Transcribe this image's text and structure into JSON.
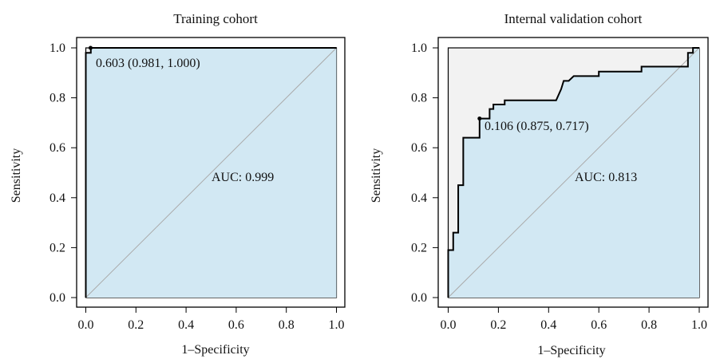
{
  "chart_data": [
    {
      "type": "line",
      "title": "Training cohort",
      "xlabel": "1–Specificity",
      "ylabel": "Sensitivity",
      "xlim": [
        0,
        1
      ],
      "ylim": [
        0,
        1
      ],
      "xticks": [
        "0.0",
        "0.2",
        "0.4",
        "0.6",
        "0.8",
        "1.0"
      ],
      "yticks": [
        "0.0",
        "0.2",
        "0.4",
        "0.6",
        "0.8",
        "1.0"
      ],
      "grid": false,
      "series": [
        {
          "points": [
            [
              0,
              0
            ],
            [
              0,
              0.98
            ],
            [
              0.02,
              0.98
            ],
            [
              0.02,
              1.0
            ],
            [
              1.0,
              1.0
            ]
          ]
        }
      ],
      "threshold_point": {
        "x": 0.019,
        "y": 1.0,
        "label": "0.603 (0.981, 1.000)"
      },
      "auc_label": "AUC: 0.999",
      "colors": {
        "fill": "#d2e8f3",
        "unfilled": "#f2f2f2",
        "curve": "#000000",
        "diagonal": "#aaaaaa"
      }
    },
    {
      "type": "line",
      "title": "Internal validation cohort",
      "xlabel": "1–Specificity",
      "ylabel": "Sensitivity",
      "xlim": [
        0,
        1
      ],
      "ylim": [
        0,
        1
      ],
      "xticks": [
        "0.0",
        "0.2",
        "0.4",
        "0.6",
        "0.8",
        "1.0"
      ],
      "yticks": [
        "0.0",
        "0.2",
        "0.4",
        "0.6",
        "0.8",
        "1.0"
      ],
      "grid": false,
      "series": [
        {
          "points": [
            [
              0,
              0
            ],
            [
              0,
              0.19
            ],
            [
              0.02,
              0.19
            ],
            [
              0.02,
              0.26
            ],
            [
              0.04,
              0.26
            ],
            [
              0.04,
              0.45
            ],
            [
              0.06,
              0.45
            ],
            [
              0.06,
              0.64
            ],
            [
              0.125,
              0.64
            ],
            [
              0.125,
              0.717
            ],
            [
              0.165,
              0.717
            ],
            [
              0.165,
              0.755
            ],
            [
              0.18,
              0.755
            ],
            [
              0.18,
              0.773
            ],
            [
              0.225,
              0.773
            ],
            [
              0.225,
              0.79
            ],
            [
              0.43,
              0.79
            ],
            [
              0.45,
              0.835
            ],
            [
              0.46,
              0.868
            ],
            [
              0.48,
              0.868
            ],
            [
              0.5,
              0.887
            ],
            [
              0.6,
              0.887
            ],
            [
              0.6,
              0.905
            ],
            [
              0.77,
              0.905
            ],
            [
              0.77,
              0.925
            ],
            [
              0.955,
              0.925
            ],
            [
              0.955,
              0.98
            ],
            [
              0.975,
              0.98
            ],
            [
              0.975,
              1.0
            ],
            [
              1.0,
              1.0
            ]
          ]
        }
      ],
      "threshold_point": {
        "x": 0.125,
        "y": 0.717,
        "label": "0.106 (0.875, 0.717)"
      },
      "auc_label": "AUC: 0.813",
      "colors": {
        "fill": "#d2e8f3",
        "unfilled": "#f2f2f2",
        "curve": "#000000",
        "diagonal": "#aaaaaa"
      }
    }
  ]
}
